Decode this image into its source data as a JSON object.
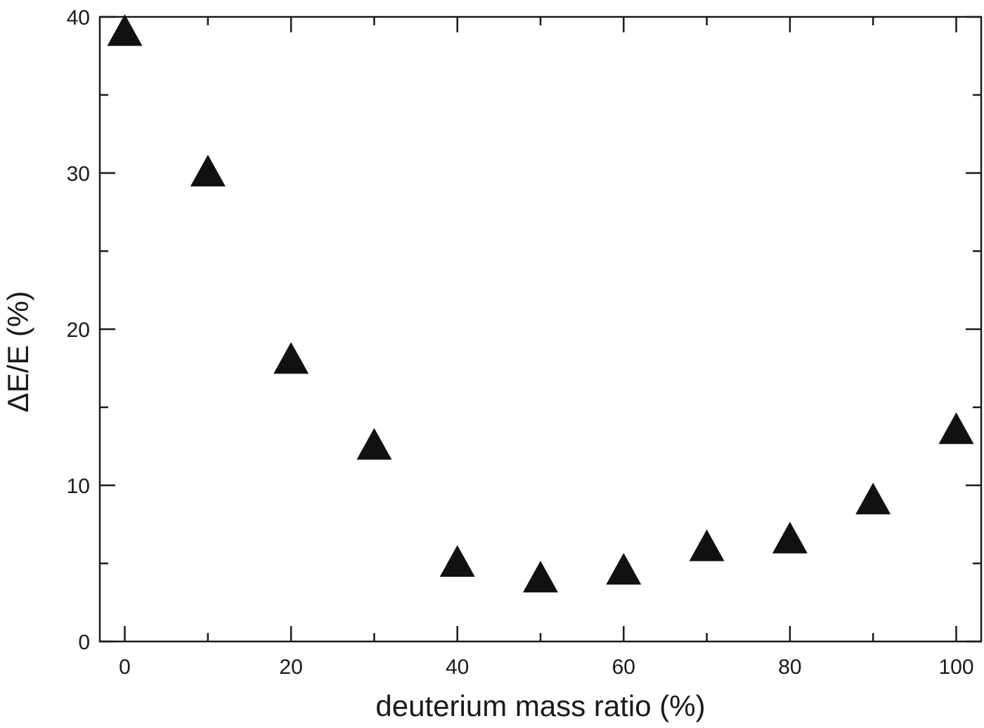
{
  "chart_data": {
    "type": "scatter",
    "xlabel": "deuterium mass ratio (%)",
    "ylabel": "ΔE/E (%)",
    "xlim": [
      -3,
      103
    ],
    "ylim": [
      0,
      40
    ],
    "x_major_ticks": [
      0,
      20,
      40,
      60,
      80,
      100
    ],
    "x_minor_ticks": [
      10,
      30,
      50,
      70,
      90
    ],
    "y_major_ticks": [
      0,
      10,
      20,
      30,
      40
    ],
    "y_minor_ticks": [
      5,
      15,
      25,
      35
    ],
    "x_tick_labels": [
      "0",
      "20",
      "40",
      "60",
      "80",
      "100"
    ],
    "y_tick_labels": [
      "0",
      "10",
      "20",
      "30",
      "40"
    ],
    "grid": false,
    "marker": "filled-triangle",
    "marker_color": "#111111",
    "series": [
      {
        "x": [
          0,
          10,
          20,
          30,
          40,
          50,
          60,
          70,
          80,
          90,
          100
        ],
        "y": [
          39,
          30,
          18,
          12.5,
          5,
          4,
          4.5,
          6,
          6.5,
          9,
          13.5
        ]
      }
    ]
  }
}
